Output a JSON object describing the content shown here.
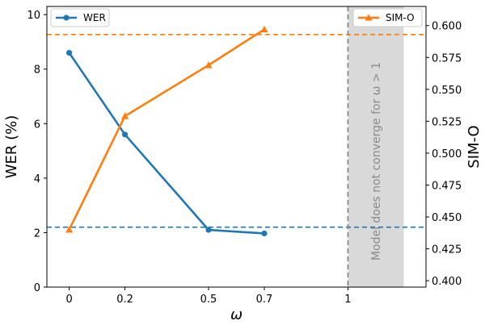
{
  "chart_data": {
    "type": "line",
    "xlabel": "ω",
    "ylabel_left": "WER (%)",
    "ylabel_right": "SIM-O",
    "x_ticks": [
      0,
      0.2,
      0.5,
      0.7,
      1
    ],
    "x_tick_labels": [
      "0",
      "0.2",
      "0.5",
      "0.7",
      "1"
    ],
    "xlim": [
      -0.08,
      1.28
    ],
    "ylim_left": [
      0,
      10.3
    ],
    "ylim_right": [
      0.395,
      0.615
    ],
    "y_left_ticks": [
      0,
      2,
      4,
      6,
      8,
      10
    ],
    "y_left_tick_labels": [
      "0",
      "2",
      "4",
      "6",
      "8",
      "10"
    ],
    "y_right_ticks": [
      0.4,
      0.425,
      0.45,
      0.475,
      0.5,
      0.525,
      0.55,
      0.575,
      0.6
    ],
    "y_right_tick_labels": [
      "0.400",
      "0.425",
      "0.450",
      "0.475",
      "0.500",
      "0.525",
      "0.550",
      "0.575",
      "0.600"
    ],
    "series": [
      {
        "name": "WER",
        "axis": "left",
        "marker": "circle",
        "color": "#1f77b4",
        "x": [
          0,
          0.2,
          0.5,
          0.7
        ],
        "values": [
          8.6,
          5.6,
          2.1,
          1.97
        ]
      },
      {
        "name": "SIM-O",
        "axis": "right",
        "marker": "triangle",
        "color": "#ff7f0e",
        "x": [
          0,
          0.2,
          0.5,
          0.7
        ],
        "values": [
          0.44,
          0.529,
          0.569,
          0.597
        ]
      }
    ],
    "reference_lines": [
      {
        "axis": "left",
        "value": 2.2,
        "color": "#1f77b4",
        "style": "dashed"
      },
      {
        "axis": "right",
        "value": 0.593,
        "color": "#ff7f0e",
        "style": "dashed"
      }
    ],
    "vertical_line": {
      "x": 1,
      "color": "#808080",
      "style": "dashed"
    },
    "shaded_region": {
      "x": [
        1,
        1.2
      ],
      "color": "#d9d9d9"
    },
    "annotation": "Model does not converge for ω > 1",
    "legend_left": {
      "placement": "top-left",
      "label": "WER"
    },
    "legend_right": {
      "placement": "top-right",
      "label": "SIM-O"
    }
  }
}
